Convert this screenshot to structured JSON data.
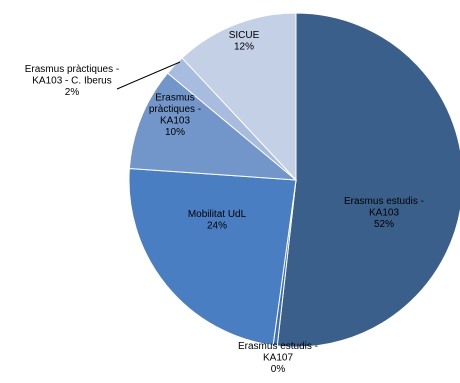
{
  "chart_data": {
    "type": "pie",
    "start_angle_deg": 0,
    "direction": "clockwise",
    "slices": [
      {
        "name": "Erasmus estudis - KA103",
        "lines": [
          "Erasmus estudis -",
          "KA103",
          "52%"
        ],
        "value": 52,
        "color": "#3a5f8a",
        "text_color": "#000000"
      },
      {
        "name": "Erasmus estudis - KA107",
        "lines": [
          "Erasmus estudis -",
          "KA107",
          "0%"
        ],
        "value": 0.4,
        "color": "#3f6fb0",
        "text_color": "#000000"
      },
      {
        "name": "Mobilitat UdL",
        "lines": [
          "Mobilitat UdL",
          "24%"
        ],
        "value": 24,
        "color": "#4a7ec2",
        "text_color": "#000000"
      },
      {
        "name": "Erasmus pràctiques - KA103",
        "lines": [
          "Erasmus",
          "pràctiques -",
          "KA103",
          "10%"
        ],
        "value": 10,
        "color": "#7396ca",
        "text_color": "#000000"
      },
      {
        "name": "Erasmus pràctiques - KA103 - C. Iberus",
        "lines": [
          "Erasmus pràctiques -",
          "KA103 - C. Iberus",
          "2%"
        ],
        "value": 2,
        "color": "#a7bcdf",
        "text_color": "#000000"
      },
      {
        "name": "SICUE",
        "lines": [
          "SICUE",
          "12%"
        ],
        "value": 12,
        "color": "#c3d0e6",
        "text_color": "#000000"
      }
    ]
  }
}
